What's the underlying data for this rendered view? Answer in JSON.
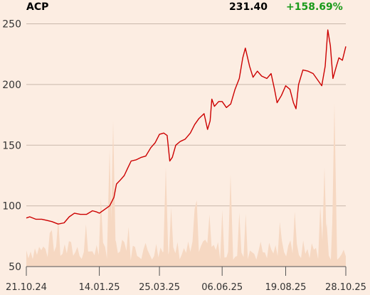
{
  "header": {
    "ticker": "ACP",
    "last_price": "231.40",
    "change": "+158.69%",
    "change_color": "#1a9a1a"
  },
  "chart_data": {
    "type": "line",
    "line_color": "#cc0000",
    "volume_color": "#f6d8c2",
    "background": "#fcede2",
    "grid": true,
    "ylim": [
      50,
      255
    ],
    "yticks": [
      50,
      100,
      150,
      200,
      250
    ],
    "xlim": [
      "2024-10-21",
      "2025-10-28"
    ],
    "xticks": [
      {
        "date": "2024-10-21",
        "label": "21.10.24"
      },
      {
        "date": "2025-01-14",
        "label": "14.01.25"
      },
      {
        "date": "2025-03-25",
        "label": "25.03.25"
      },
      {
        "date": "2025-06-06",
        "label": "06.06.25"
      },
      {
        "date": "2025-08-19",
        "label": "19.08.25"
      },
      {
        "date": "2025-10-28",
        "label": "28.10.25"
      }
    ],
    "series": [
      {
        "values": [
          [
            "2024-10-21",
            90
          ],
          [
            "2024-10-25",
            91
          ],
          [
            "2024-11-01",
            89
          ],
          [
            "2024-11-08",
            89
          ],
          [
            "2024-11-14",
            88
          ],
          [
            "2024-11-20",
            87
          ],
          [
            "2024-11-27",
            85
          ],
          [
            "2024-12-04",
            86
          ],
          [
            "2024-12-10",
            91
          ],
          [
            "2024-12-16",
            94
          ],
          [
            "2024-12-23",
            93
          ],
          [
            "2024-12-30",
            93
          ],
          [
            "2025-01-06",
            96
          ],
          [
            "2025-01-11",
            95
          ],
          [
            "2025-01-14",
            94
          ],
          [
            "2025-01-20",
            97
          ],
          [
            "2025-01-26",
            100
          ],
          [
            "2025-01-31",
            107
          ],
          [
            "2025-02-03",
            118
          ],
          [
            "2025-02-07",
            121
          ],
          [
            "2025-02-12",
            125
          ],
          [
            "2025-02-16",
            131
          ],
          [
            "2025-02-20",
            137
          ],
          [
            "2025-02-26",
            138
          ],
          [
            "2025-03-04",
            140
          ],
          [
            "2025-03-09",
            141
          ],
          [
            "2025-03-15",
            148
          ],
          [
            "2025-03-20",
            152
          ],
          [
            "2025-03-25",
            159
          ],
          [
            "2025-03-30",
            160
          ],
          [
            "2025-04-03",
            158
          ],
          [
            "2025-04-06",
            137
          ],
          [
            "2025-04-09",
            140
          ],
          [
            "2025-04-13",
            150
          ],
          [
            "2025-04-18",
            153
          ],
          [
            "2025-04-24",
            155
          ],
          [
            "2025-04-30",
            160
          ],
          [
            "2025-05-05",
            167
          ],
          [
            "2025-05-10",
            172
          ],
          [
            "2025-05-16",
            176
          ],
          [
            "2025-05-20",
            163
          ],
          [
            "2025-05-23",
            170
          ],
          [
            "2025-05-25",
            188
          ],
          [
            "2025-05-28",
            182
          ],
          [
            "2025-06-02",
            186
          ],
          [
            "2025-06-06",
            186
          ],
          [
            "2025-06-11",
            181
          ],
          [
            "2025-06-16",
            184
          ],
          [
            "2025-06-21",
            196
          ],
          [
            "2025-06-26",
            205
          ],
          [
            "2025-06-30",
            222
          ],
          [
            "2025-07-03",
            230
          ],
          [
            "2025-07-08",
            215
          ],
          [
            "2025-07-12",
            206
          ],
          [
            "2025-07-17",
            211
          ],
          [
            "2025-07-22",
            207
          ],
          [
            "2025-07-28",
            205
          ],
          [
            "2025-08-02",
            209
          ],
          [
            "2025-08-06",
            196
          ],
          [
            "2025-08-09",
            185
          ],
          [
            "2025-08-14",
            191
          ],
          [
            "2025-08-19",
            199
          ],
          [
            "2025-08-24",
            196
          ],
          [
            "2025-08-28",
            185
          ],
          [
            "2025-08-31",
            180
          ],
          [
            "2025-09-03",
            200
          ],
          [
            "2025-09-08",
            212
          ],
          [
            "2025-09-14",
            211
          ],
          [
            "2025-09-20",
            209
          ],
          [
            "2025-09-25",
            204
          ],
          [
            "2025-09-30",
            199
          ],
          [
            "2025-10-04",
            215
          ],
          [
            "2025-10-07",
            245
          ],
          [
            "2025-10-10",
            232
          ],
          [
            "2025-10-13",
            205
          ],
          [
            "2025-10-17",
            215
          ],
          [
            "2025-10-20",
            222
          ],
          [
            "2025-10-24",
            220
          ],
          [
            "2025-10-28",
            231.4
          ]
        ]
      }
    ]
  }
}
